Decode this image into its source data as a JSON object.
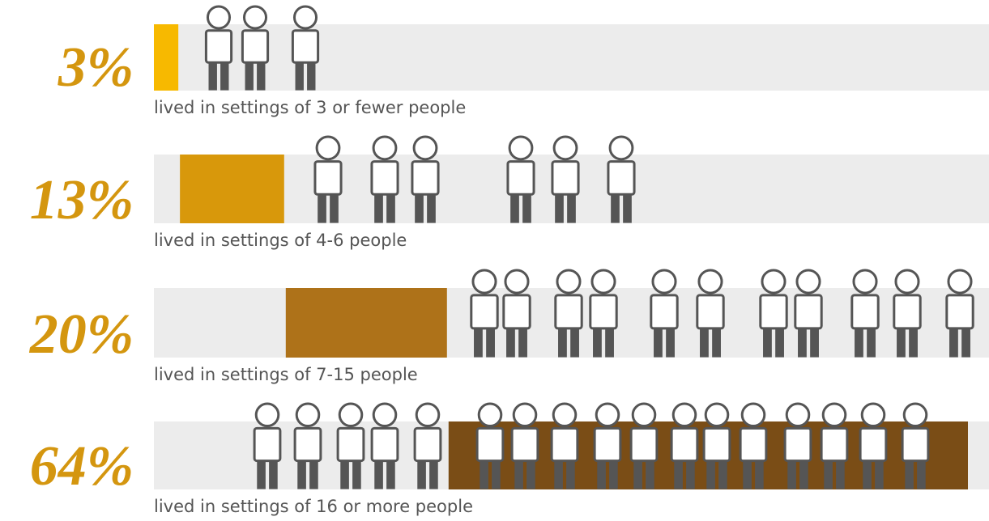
{
  "chart_data": {
    "type": "bar",
    "categories": [
      "lived in settings of 3 or fewer people",
      "lived in settings of 4-6 people",
      "lived in settings of 7-15 people",
      "lived in settings of 16 or more people"
    ],
    "values": [
      3,
      13,
      20,
      64
    ],
    "value_labels": [
      "3%",
      "13%",
      "20%",
      "64%"
    ],
    "colors": [
      "#f7b900",
      "#d8980b",
      "#ae7219",
      "#7a4d16"
    ],
    "label_color": "#d4960f",
    "track_color": "#ececec",
    "xlim": [
      0,
      100
    ]
  }
}
